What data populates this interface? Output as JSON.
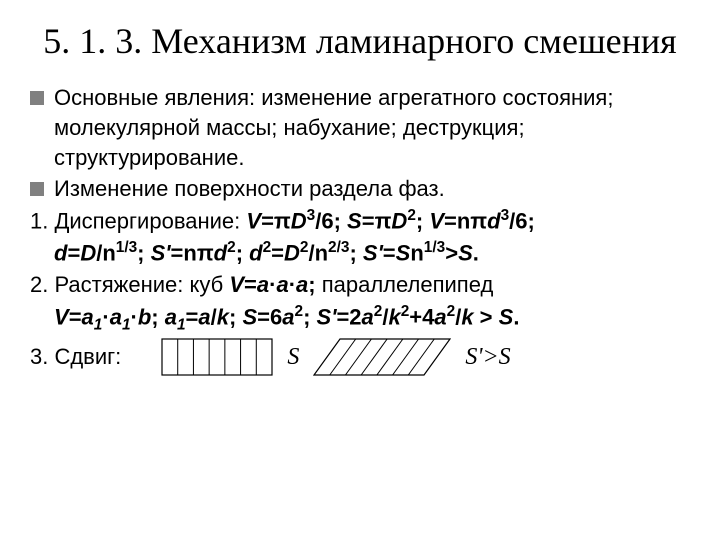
{
  "title": "5. 1. 3. Механизм ламинарного смешения",
  "bullets": [
    "Основные явления: изменение агрегатного состояния; молекулярной массы; набухание; деструкция; структурирование.",
    "Изменение поверхности раздела фаз."
  ],
  "items": {
    "item1_label": "1. Диспергирование: ",
    "item2_label": "2. Растяжение: куб ",
    "item2_mid": " параллелепипед",
    "item3_label": "3. Сдвиг:"
  },
  "formulas": {
    "f1a": "V=πD³/6; S=πD²; V=nπd³/6;",
    "f1b": "d=D/n¹ᐟ³; S'=nπd²; d²=D²/n²ᐟ³; S'=Sn¹ᐟ³>S.",
    "f2a": "V=a·a·a;",
    "f2b": "V=a₁·a₁·b; a₁=a/k; S=6a²; S'=2a²/k²+4a²/k > S."
  },
  "diagram": {
    "s_label": "S",
    "sprime_label": "S'>S",
    "stroke": "#000000",
    "rect_w": 110,
    "rect_h": 36,
    "cols": 7,
    "skew": 26
  }
}
